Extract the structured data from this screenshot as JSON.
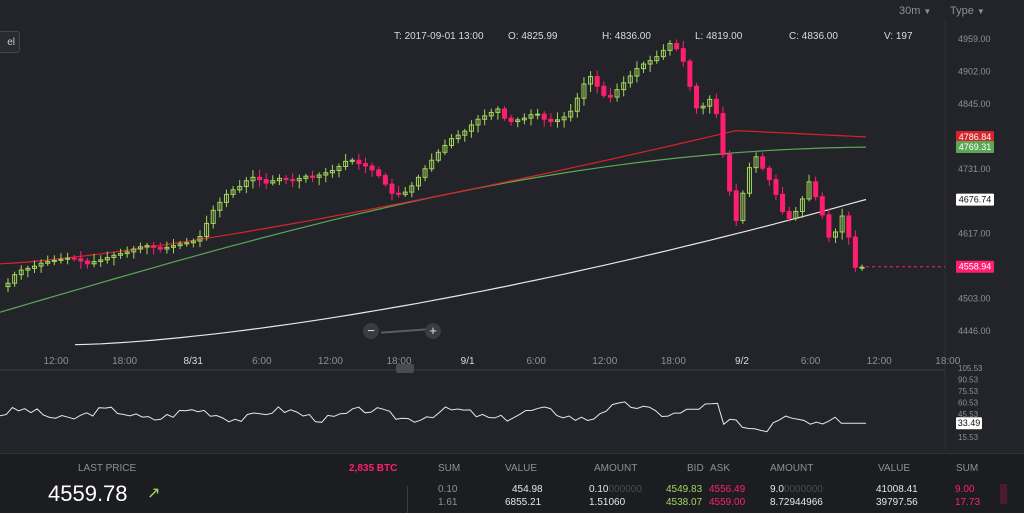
{
  "toolbar": {
    "interval": "30m",
    "type_label": "Type",
    "left_label": "el"
  },
  "ohlc": {
    "t_label": "T:",
    "t_value": "2017-09-01 13:00",
    "o_label": "O:",
    "o_value": "4825.99",
    "h_label": "H:",
    "h_value": "4836.00",
    "l_label": "L:",
    "l_value": "4819.00",
    "c_label": "C:",
    "c_value": "4836.00",
    "v_label": "V:",
    "v_value": "197"
  },
  "colors": {
    "up": "#a3d65c",
    "down": "#ff1f6e",
    "ma_fast": "#d6252a",
    "ma_mid": "#5aa857",
    "ma_slow": "#e8e8e8",
    "background": "#232429"
  },
  "chart_data": {
    "type": "candlestick",
    "x_tick_labels": [
      "12:00",
      "18:00",
      "8/31",
      "6:00",
      "12:00",
      "18:00",
      "9/1",
      "6:00",
      "12:00",
      "18:00",
      "9/2",
      "6:00",
      "12:00",
      "18:00"
    ],
    "y_tick_labels": [
      "4959.00",
      "4902.00",
      "4845.00",
      "4731.00",
      "4617.00",
      "4503.00",
      "4446.00"
    ],
    "ylim": [
      4446,
      4959
    ],
    "price_badges": [
      {
        "value": "4786.84",
        "color": "#d6252a"
      },
      {
        "value": "4769.31",
        "color": "#5aa857"
      },
      {
        "value": "4676.74",
        "color": "#ffffff"
      },
      {
        "value": "4558.94",
        "color": "#ff1f6e"
      }
    ],
    "closes": [
      4530,
      4545,
      4553,
      4556,
      4560,
      4565,
      4568,
      4570,
      4572,
      4574,
      4573,
      4569,
      4564,
      4568,
      4571,
      4575,
      4579,
      4582,
      4585,
      4590,
      4594,
      4596,
      4593,
      4590,
      4593,
      4596,
      4599,
      4601,
      4604,
      4612,
      4635,
      4658,
      4672,
      4686,
      4694,
      4700,
      4710,
      4716,
      4712,
      4706,
      4710,
      4714,
      4712,
      4710,
      4714,
      4718,
      4716,
      4720,
      4724,
      4728,
      4735,
      4744,
      4746,
      4740,
      4736,
      4729,
      4719,
      4704,
      4688,
      4686,
      4690,
      4701,
      4716,
      4731,
      4746,
      4760,
      4772,
      4784,
      4790,
      4797,
      4808,
      4818,
      4824,
      4830,
      4836,
      4820,
      4814,
      4817,
      4820,
      4826,
      4827,
      4818,
      4814,
      4817,
      4822,
      4832,
      4855,
      4880,
      4893,
      4876,
      4860,
      4857,
      4870,
      4882,
      4894,
      4907,
      4915,
      4921,
      4928,
      4939,
      4951,
      4942,
      4920,
      4876,
      4838,
      4841,
      4853,
      4828,
      4756,
      4692,
      4640,
      4688,
      4733,
      4752,
      4732,
      4712,
      4686,
      4656,
      4644,
      4656,
      4678,
      4708,
      4682,
      4650,
      4611,
      4620,
      4648,
      4611,
      4558,
      4558
    ],
    "ma_fast": {
      "start": 4564,
      "end": 4787
    },
    "ma_mid": {
      "start": 4479,
      "end": 4769
    },
    "ma_slow": {
      "start": 4422,
      "end": 4677
    },
    "indicator": {
      "y_tick_labels": [
        "105.53",
        "90.53",
        "75.53",
        "60.53",
        "45.53",
        "30.53",
        "15.53"
      ],
      "ylim": [
        15.53,
        105.53
      ],
      "current_badge": "33.49"
    }
  },
  "zoom": {
    "minus": "−",
    "plus": "+"
  },
  "orderbook": {
    "last_price_label": "LAST PRICE",
    "last_price": "4559.78",
    "trend_arrow": "↗",
    "volume_label": "2,835 BTC",
    "headers": {
      "sum_left": "SUM",
      "value_left": "VALUE",
      "amount_left": "AMOUNT",
      "bid": "BID",
      "ask": "ASK",
      "amount_right": "AMOUNT",
      "value_right": "VALUE",
      "sum_right": "SUM"
    },
    "rows": [
      {
        "sum_l": "0.10",
        "value_l": "454.98",
        "amount_l": "0.10",
        "amount_l_faded": "000000",
        "bid": "4549.83",
        "ask": "4556.49",
        "amount_r": "9.0",
        "amount_r_faded": "0000000",
        "value_r": "41008.41",
        "sum_r": "9.00"
      },
      {
        "sum_l": "1.61",
        "value_l": "6855.21",
        "amount_l": "1.51060",
        "amount_l_faded": "",
        "bid": "4538.07",
        "ask": "4559.00",
        "amount_r": "8.72944966",
        "amount_r_faded": "",
        "value_r": "39797.56",
        "sum_r": "17.73"
      }
    ]
  }
}
